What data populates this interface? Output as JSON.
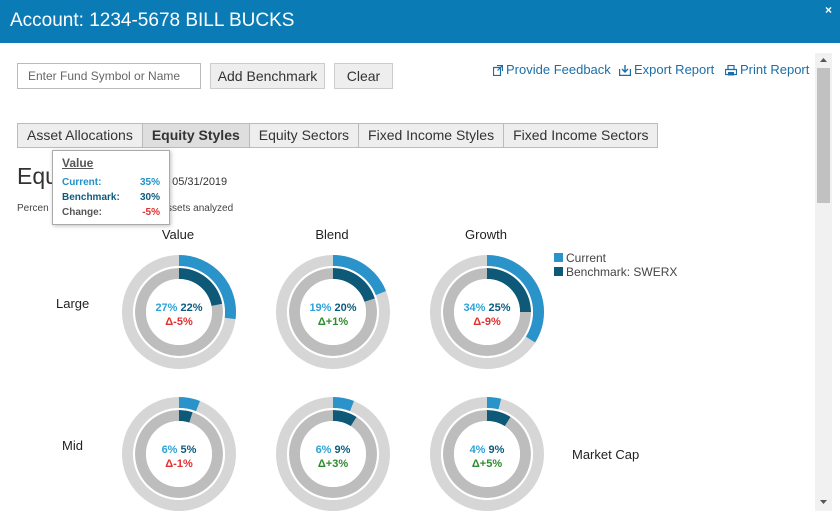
{
  "window": {
    "title": "Account:  1234-5678  BILL BUCKS",
    "close_symbol": "×"
  },
  "search": {
    "placeholder": "Enter Fund Symbol or Name",
    "value": ""
  },
  "buttons": {
    "add_benchmark": "Add Benchmark",
    "clear": "Clear"
  },
  "links": {
    "feedback": "Provide Feedback",
    "export": "Export Report",
    "print": "Print Report"
  },
  "tabs": [
    {
      "label": "Asset Allocations",
      "active": false
    },
    {
      "label": "Equity Styles",
      "active": true
    },
    {
      "label": "Equity Sectors",
      "active": false
    },
    {
      "label": "Fixed Income Styles",
      "active": false
    },
    {
      "label": "Fixed Income Sectors",
      "active": false
    }
  ],
  "section": {
    "heading_visible": "Equ",
    "asof_visible": "f 05/31/2019",
    "note_left": "Percen",
    "note_right": "ity assets analyzed"
  },
  "tooltip": {
    "title": "Value",
    "rows": [
      {
        "label": "Current:",
        "value": "35%"
      },
      {
        "label": "Benchmark:",
        "value": "30%"
      },
      {
        "label": "Change:",
        "value": "-5%"
      }
    ]
  },
  "columns": [
    "Value",
    "Blend",
    "Growth"
  ],
  "rows": [
    "Large",
    "Mid"
  ],
  "axis_label": "Market Cap",
  "legend": {
    "current": "Current",
    "benchmark": "Benchmark: SWERX"
  },
  "colors": {
    "current": "#2a93c9",
    "benchmark": "#0e5878",
    "track": "#d6d6d6",
    "inner_track": "#bdbdbd",
    "titlebar": "#0a7bb5",
    "negative": "#e03030",
    "positive": "#2e8b2e"
  },
  "icons": {
    "feedback": "external-link-icon",
    "export": "export-icon",
    "print": "print-icon"
  },
  "cells": [
    {
      "row": "Large",
      "col": "Value",
      "current": 27,
      "benchmark": 22,
      "current_label": "27%",
      "benchmark_label": "22%",
      "change_label": "Δ-5%",
      "change_sign": "neg"
    },
    {
      "row": "Large",
      "col": "Blend",
      "current": 19,
      "benchmark": 20,
      "current_label": "19%",
      "benchmark_label": "20%",
      "change_label": "Δ+1%",
      "change_sign": "pos"
    },
    {
      "row": "Large",
      "col": "Growth",
      "current": 34,
      "benchmark": 25,
      "current_label": "34%",
      "benchmark_label": "25%",
      "change_label": "Δ-9%",
      "change_sign": "neg"
    },
    {
      "row": "Mid",
      "col": "Value",
      "current": 6,
      "benchmark": 5,
      "current_label": "6%",
      "benchmark_label": "5%",
      "change_label": "Δ-1%",
      "change_sign": "neg"
    },
    {
      "row": "Mid",
      "col": "Blend",
      "current": 6,
      "benchmark": 9,
      "current_label": "6%",
      "benchmark_label": "9%",
      "change_label": "Δ+3%",
      "change_sign": "pos"
    },
    {
      "row": "Mid",
      "col": "Growth",
      "current": 4,
      "benchmark": 9,
      "current_label": "4%",
      "benchmark_label": "9%",
      "change_label": "Δ+5%",
      "change_sign": "pos"
    }
  ]
}
